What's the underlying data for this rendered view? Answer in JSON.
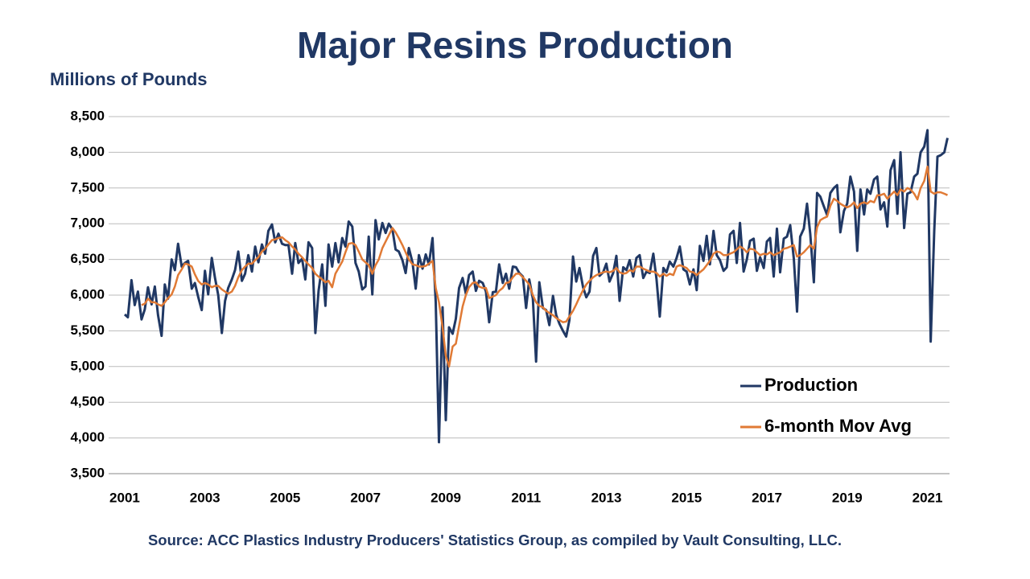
{
  "chart_data": {
    "type": "line",
    "title": "Major Resins Production",
    "y_label": "Millions of Pounds",
    "source": "Source: ACC Plastics Industry Producers' Statistics Group, as compiled by Vault Consulting, LLC.",
    "legend": "lower right",
    "grid": true,
    "xlim": [
      2000.6,
      2021.55
    ],
    "xticks": [
      2001,
      2003,
      2005,
      2007,
      2009,
      2011,
      2013,
      2015,
      2017,
      2019,
      2021
    ],
    "ylim": [
      3500,
      8500
    ],
    "yticks": [
      {
        "value": 3500,
        "label": "3,500"
      },
      {
        "value": 4000,
        "label": "4,000"
      },
      {
        "value": 4500,
        "label": "4,500"
      },
      {
        "value": 5000,
        "label": "5,000"
      },
      {
        "value": 5500,
        "label": "5,500"
      },
      {
        "value": 6000,
        "label": "6,000"
      },
      {
        "value": 6500,
        "label": "6,500"
      },
      {
        "value": 7000,
        "label": "7,000"
      },
      {
        "value": 7500,
        "label": "7,500"
      },
      {
        "value": 8000,
        "label": "8,000"
      },
      {
        "value": 8500,
        "label": "8,500"
      }
    ],
    "x": [
      2001,
      2001.08,
      2001.17,
      2001.25,
      2001.33,
      2001.42,
      2001.5,
      2001.58,
      2001.67,
      2001.75,
      2001.83,
      2001.92,
      2002,
      2002.08,
      2002.17,
      2002.25,
      2002.33,
      2002.42,
      2002.5,
      2002.58,
      2002.67,
      2002.75,
      2002.83,
      2002.92,
      2003,
      2003.08,
      2003.17,
      2003.25,
      2003.33,
      2003.42,
      2003.5,
      2003.58,
      2003.67,
      2003.75,
      2003.83,
      2003.92,
      2004,
      2004.08,
      2004.17,
      2004.25,
      2004.33,
      2004.42,
      2004.5,
      2004.58,
      2004.67,
      2004.75,
      2004.83,
      2004.92,
      2005,
      2005.08,
      2005.17,
      2005.25,
      2005.33,
      2005.42,
      2005.5,
      2005.58,
      2005.67,
      2005.75,
      2005.83,
      2005.92,
      2006,
      2006.08,
      2006.17,
      2006.25,
      2006.33,
      2006.42,
      2006.5,
      2006.58,
      2006.67,
      2006.75,
      2006.83,
      2006.92,
      2007,
      2007.08,
      2007.17,
      2007.25,
      2007.33,
      2007.42,
      2007.5,
      2007.58,
      2007.67,
      2007.75,
      2007.83,
      2007.92,
      2008,
      2008.08,
      2008.17,
      2008.25,
      2008.33,
      2008.42,
      2008.5,
      2008.58,
      2008.67,
      2008.75,
      2008.83,
      2008.92,
      2009,
      2009.08,
      2009.17,
      2009.25,
      2009.33,
      2009.42,
      2009.5,
      2009.58,
      2009.67,
      2009.75,
      2009.83,
      2009.92,
      2010,
      2010.08,
      2010.17,
      2010.25,
      2010.33,
      2010.42,
      2010.5,
      2010.58,
      2010.67,
      2010.75,
      2010.83,
      2010.92,
      2011,
      2011.08,
      2011.17,
      2011.25,
      2011.33,
      2011.42,
      2011.5,
      2011.58,
      2011.67,
      2011.75,
      2011.83,
      2011.92,
      2012,
      2012.08,
      2012.17,
      2012.25,
      2012.33,
      2012.42,
      2012.5,
      2012.58,
      2012.67,
      2012.75,
      2012.83,
      2012.92,
      2013,
      2013.08,
      2013.17,
      2013.25,
      2013.33,
      2013.42,
      2013.5,
      2013.58,
      2013.67,
      2013.75,
      2013.83,
      2013.92,
      2014,
      2014.08,
      2014.17,
      2014.25,
      2014.33,
      2014.42,
      2014.5,
      2014.58,
      2014.67,
      2014.75,
      2014.83,
      2014.92,
      2015,
      2015.08,
      2015.17,
      2015.25,
      2015.33,
      2015.42,
      2015.5,
      2015.58,
      2015.67,
      2015.75,
      2015.83,
      2015.92,
      2016,
      2016.08,
      2016.17,
      2016.25,
      2016.33,
      2016.42,
      2016.5,
      2016.58,
      2016.67,
      2016.75,
      2016.83,
      2016.92,
      2017,
      2017.08,
      2017.17,
      2017.25,
      2017.33,
      2017.42,
      2017.5,
      2017.58,
      2017.67,
      2017.75,
      2017.83,
      2017.92,
      2018,
      2018.08,
      2018.17,
      2018.25,
      2018.33,
      2018.42,
      2018.5,
      2018.58,
      2018.67,
      2018.75,
      2018.83,
      2018.92,
      2019,
      2019.08,
      2019.17,
      2019.25,
      2019.33,
      2019.42,
      2019.5,
      2019.58,
      2019.67,
      2019.75,
      2019.83,
      2019.92,
      2020,
      2020.08,
      2020.17,
      2020.25,
      2020.33,
      2020.42,
      2020.5,
      2020.58,
      2020.67,
      2020.75,
      2020.83,
      2020.92,
      2021,
      2021.08,
      2021.17,
      2021.25,
      2021.33,
      2021.42,
      2021.5
    ],
    "series": [
      {
        "name": "Production",
        "color": "#203864",
        "values": [
          5730,
          5690,
          6210,
          5860,
          6050,
          5660,
          5800,
          6110,
          5870,
          6120,
          5720,
          5430,
          6150,
          5950,
          6500,
          6350,
          6720,
          6400,
          6450,
          6480,
          6090,
          6170,
          5980,
          5790,
          6340,
          6010,
          6520,
          6240,
          6000,
          5470,
          5920,
          6100,
          6220,
          6350,
          6610,
          6200,
          6300,
          6560,
          6330,
          6680,
          6460,
          6710,
          6580,
          6900,
          6990,
          6740,
          6860,
          6720,
          6700,
          6700,
          6300,
          6730,
          6450,
          6510,
          6220,
          6740,
          6660,
          5470,
          6060,
          6430,
          5850,
          6710,
          6400,
          6730,
          6460,
          6800,
          6680,
          7030,
          6960,
          6450,
          6330,
          6080,
          6120,
          6820,
          6010,
          7050,
          6780,
          7010,
          6870,
          7000,
          6920,
          6640,
          6610,
          6490,
          6310,
          6660,
          6460,
          6090,
          6560,
          6370,
          6570,
          6430,
          6800,
          5900,
          3940,
          5830,
          4250,
          5550,
          5460,
          5670,
          6100,
          6240,
          6020,
          6280,
          6330,
          6060,
          6200,
          6170,
          6050,
          5620,
          6040,
          6050,
          6430,
          6170,
          6300,
          6090,
          6400,
          6390,
          6310,
          6260,
          5820,
          6220,
          5950,
          5070,
          6180,
          5820,
          5790,
          5580,
          5990,
          5720,
          5600,
          5500,
          5420,
          5650,
          6540,
          6190,
          6380,
          6110,
          5970,
          6050,
          6550,
          6660,
          6270,
          6320,
          6440,
          6190,
          6310,
          6550,
          5920,
          6390,
          6350,
          6490,
          6260,
          6520,
          6560,
          6240,
          6330,
          6310,
          6580,
          6220,
          5700,
          6380,
          6320,
          6470,
          6400,
          6520,
          6680,
          6360,
          6330,
          6150,
          6360,
          6070,
          6690,
          6480,
          6830,
          6430,
          6900,
          6560,
          6490,
          6340,
          6390,
          6850,
          6900,
          6450,
          7010,
          6330,
          6500,
          6760,
          6790,
          6340,
          6530,
          6380,
          6750,
          6800,
          6260,
          6930,
          6320,
          6790,
          6820,
          6980,
          6510,
          5770,
          6820,
          6930,
          7280,
          6860,
          6180,
          7430,
          7380,
          7240,
          7120,
          7430,
          7500,
          7540,
          6880,
          7180,
          7280,
          7660,
          7450,
          6620,
          7480,
          7130,
          7480,
          7420,
          7620,
          7660,
          7200,
          7300,
          6960,
          7750,
          7890,
          7140,
          8000,
          6940,
          7420,
          7440,
          7660,
          7700,
          8000,
          8080,
          8310,
          5350,
          6900,
          7940,
          7960,
          8000,
          8200
        ]
      },
      {
        "name": "6-month Mov Avg",
        "color": "#e07a35",
        "values": [
          null,
          null,
          null,
          null,
          null,
          5860,
          5880,
          5950,
          5900,
          5900,
          5870,
          5850,
          5900,
          5960,
          6010,
          6120,
          6280,
          6360,
          6440,
          6430,
          6400,
          6290,
          6200,
          6150,
          6170,
          6150,
          6110,
          6130,
          6130,
          6080,
          6050,
          6020,
          6050,
          6130,
          6250,
          6350,
          6400,
          6440,
          6440,
          6490,
          6530,
          6610,
          6650,
          6710,
          6770,
          6780,
          6800,
          6810,
          6770,
          6740,
          6680,
          6640,
          6580,
          6530,
          6480,
          6430,
          6380,
          6300,
          6260,
          6220,
          6180,
          6200,
          6110,
          6300,
          6380,
          6470,
          6600,
          6720,
          6730,
          6700,
          6610,
          6500,
          6460,
          6420,
          6300,
          6420,
          6500,
          6660,
          6750,
          6840,
          6940,
          6880,
          6800,
          6700,
          6600,
          6500,
          6430,
          6420,
          6400,
          6400,
          6410,
          6440,
          6480,
          6100,
          5900,
          5550,
          5150,
          5000,
          5280,
          5320,
          5570,
          5840,
          6000,
          6110,
          6170,
          6180,
          6120,
          6100,
          6100,
          5960,
          5980,
          6000,
          6060,
          6100,
          6170,
          6180,
          6250,
          6300,
          6300,
          6250,
          6200,
          6150,
          6000,
          5900,
          5850,
          5830,
          5780,
          5750,
          5720,
          5680,
          5650,
          5620,
          5630,
          5700,
          5780,
          5870,
          5970,
          6070,
          6150,
          6200,
          6250,
          6280,
          6300,
          6320,
          6330,
          6320,
          6340,
          6380,
          6320,
          6300,
          6310,
          6350,
          6330,
          6400,
          6400,
          6370,
          6350,
          6330,
          6330,
          6310,
          6260,
          6300,
          6270,
          6300,
          6280,
          6400,
          6420,
          6400,
          6380,
          6330,
          6320,
          6280,
          6320,
          6360,
          6420,
          6480,
          6580,
          6610,
          6600,
          6560,
          6560,
          6580,
          6600,
          6640,
          6680,
          6650,
          6600,
          6650,
          6640,
          6600,
          6560,
          6580,
          6570,
          6600,
          6560,
          6580,
          6600,
          6650,
          6660,
          6680,
          6700,
          6540,
          6560,
          6600,
          6650,
          6700,
          6650,
          6950,
          7050,
          7080,
          7100,
          7250,
          7350,
          7320,
          7280,
          7250,
          7230,
          7250,
          7300,
          7220,
          7280,
          7300,
          7280,
          7320,
          7300,
          7400,
          7400,
          7420,
          7350,
          7400,
          7450,
          7400,
          7480,
          7450,
          7500,
          7480,
          7420,
          7340,
          7500,
          7600,
          7800,
          7450,
          7420,
          7440,
          7440,
          7420,
          7400
        ]
      }
    ]
  }
}
